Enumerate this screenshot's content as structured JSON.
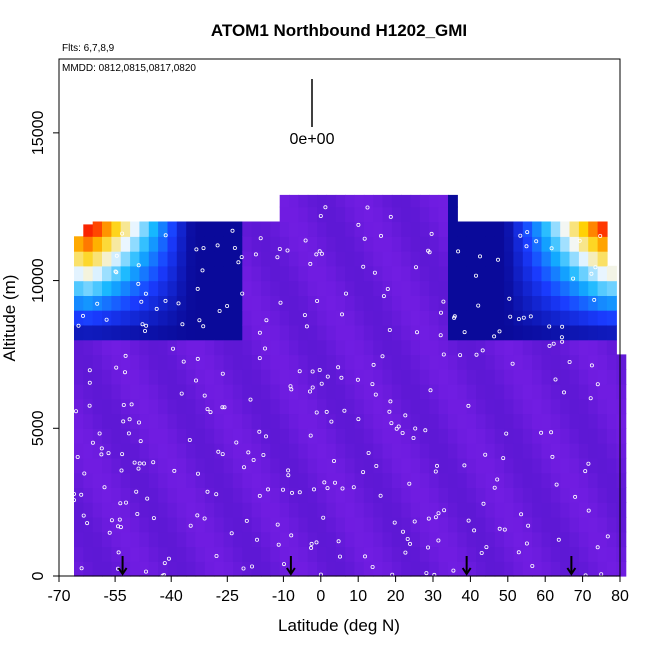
{
  "chart_data": {
    "type": "heatmap",
    "title": "ATOM1 Northbound H1202_GMI",
    "subtitle_flights": "Flts: 6,7,8,9",
    "subtitle_dates": "MMDD: 0812,0815,0817,0820",
    "xlabel": "Latitude (deg N)",
    "ylabel": "Altitude (m)",
    "xlim": [
      -70,
      80
    ],
    "ylim": [
      0,
      17500
    ],
    "x_ticks": [
      -70,
      -55,
      -40,
      -25,
      -10,
      0,
      10,
      20,
      30,
      40,
      50,
      60,
      70,
      80
    ],
    "x_tick_labels": [
      "-70",
      "-55",
      "-40",
      "-25",
      "-10",
      "0",
      "10",
      "20",
      "30",
      "40",
      "50",
      "60",
      "70",
      "80"
    ],
    "y_ticks": [
      0,
      5000,
      10000,
      15000
    ],
    "y_tick_labels": [
      "0",
      "5000",
      "10000",
      "15000"
    ],
    "scale_label": "0e+00",
    "flight_markers_lat": [
      -53,
      -8,
      39,
      67
    ],
    "background_color": "#8a2be2",
    "colormap": [
      "#7a1fe8",
      "#3f10c0",
      "#0a0a9a",
      "#1a3cff",
      "#12b6ff",
      "#f2f8ff",
      "#ffd000",
      "#ff2a00",
      "#d80000"
    ],
    "field_summary": {
      "interior_value": "low (violet)",
      "high_regions": [
        {
          "lat_range": [
            -62,
            -40
          ],
          "alt_range": [
            10500,
            12000
          ],
          "level": "high"
        },
        {
          "lat_range": [
            53,
            77
          ],
          "alt_range": [
            10500,
            12000
          ],
          "level": "high"
        }
      ]
    }
  }
}
